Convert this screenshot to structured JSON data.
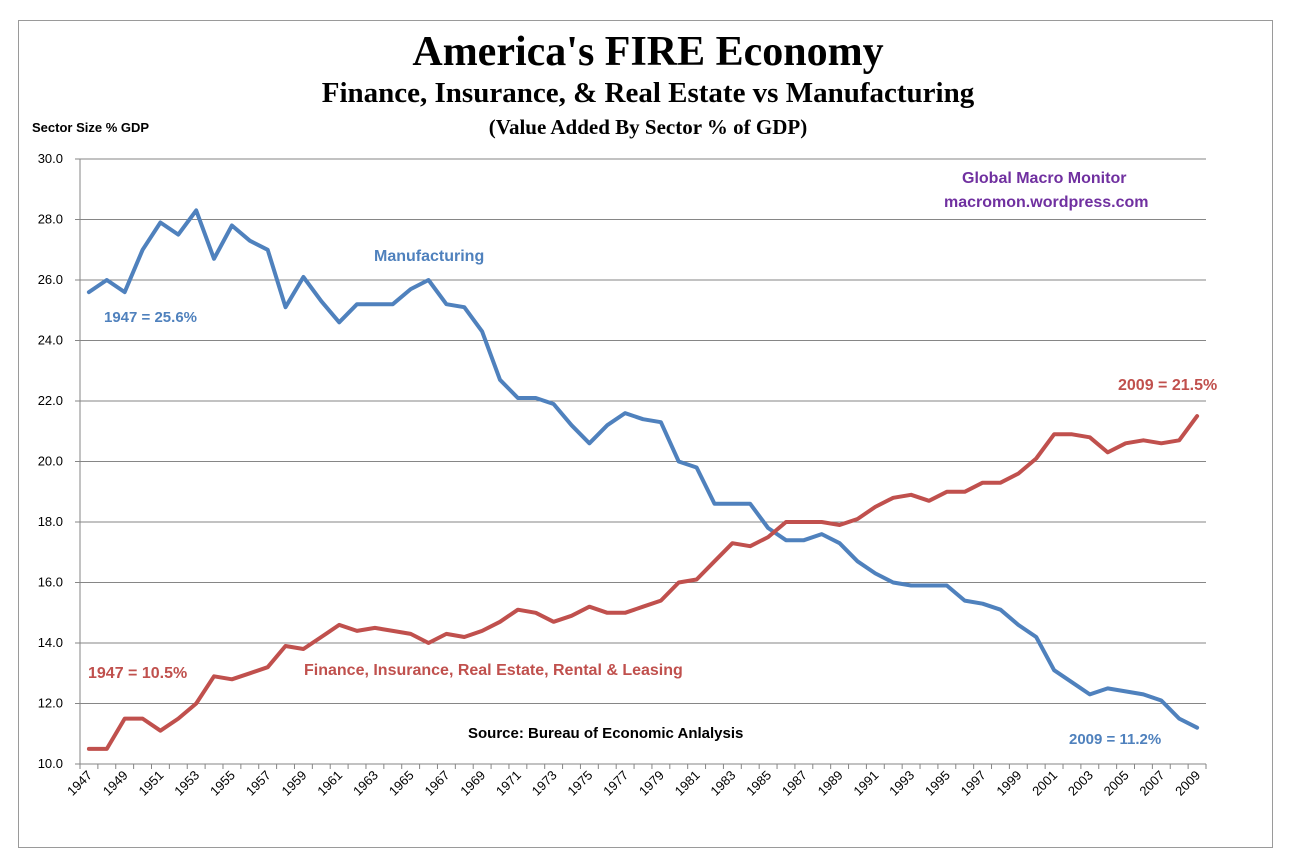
{
  "chart_data": {
    "type": "line",
    "title": "America's FIRE Economy",
    "subtitle": "Finance, Insurance, & Real Estate vs Manufacturing",
    "subtitle2": "(Value Added By Sector % of GDP)",
    "ylabel": "Sector Size % GDP",
    "xlabel": "",
    "ylim": [
      10,
      30
    ],
    "yticks": [
      "10.0",
      "12.0",
      "14.0",
      "16.0",
      "18.0",
      "20.0",
      "22.0",
      "24.0",
      "26.0",
      "28.0",
      "30.0"
    ],
    "xtick_labels": [
      "1947",
      "1949",
      "1951",
      "1953",
      "1955",
      "1957",
      "1959",
      "1961",
      "1963",
      "1965",
      "1967",
      "1969",
      "1971",
      "1973",
      "1975",
      "1977",
      "1979",
      "1981",
      "1983",
      "1985",
      "1987",
      "1989",
      "1991",
      "1993",
      "1995",
      "1997",
      "1999",
      "2001",
      "2003",
      "2005",
      "2007",
      "2009"
    ],
    "grid": true,
    "x": [
      1947,
      1948,
      1949,
      1950,
      1951,
      1952,
      1953,
      1954,
      1955,
      1956,
      1957,
      1958,
      1959,
      1960,
      1961,
      1962,
      1963,
      1964,
      1965,
      1966,
      1967,
      1968,
      1969,
      1970,
      1971,
      1972,
      1973,
      1974,
      1975,
      1976,
      1977,
      1978,
      1979,
      1980,
      1981,
      1982,
      1983,
      1984,
      1985,
      1986,
      1987,
      1988,
      1989,
      1990,
      1991,
      1992,
      1993,
      1994,
      1995,
      1996,
      1997,
      1998,
      1999,
      2000,
      2001,
      2002,
      2003,
      2004,
      2005,
      2006,
      2007,
      2008,
      2009
    ],
    "series": [
      {
        "name": "Manufacturing",
        "color": "#4f81bd",
        "values": [
          25.6,
          26.0,
          25.6,
          27.0,
          27.9,
          27.5,
          28.3,
          26.7,
          27.8,
          27.3,
          27.0,
          25.1,
          26.1,
          25.3,
          24.6,
          25.2,
          25.2,
          25.2,
          25.7,
          26.0,
          25.2,
          25.1,
          24.3,
          22.7,
          22.1,
          22.1,
          21.9,
          21.2,
          20.6,
          21.2,
          21.6,
          21.4,
          21.3,
          20.0,
          19.8,
          18.6,
          18.6,
          18.6,
          17.8,
          17.4,
          17.4,
          17.6,
          17.3,
          16.7,
          16.3,
          16.0,
          15.9,
          15.9,
          15.9,
          15.4,
          15.3,
          15.1,
          14.6,
          14.2,
          13.1,
          12.7,
          12.3,
          12.5,
          12.4,
          12.3,
          12.1,
          11.5,
          11.2
        ]
      },
      {
        "name": "Finance, Insurance, Real Estate, Rental & Leasing",
        "color": "#c0504d",
        "values": [
          10.5,
          10.5,
          11.5,
          11.5,
          11.1,
          11.5,
          12.0,
          12.9,
          12.8,
          13.0,
          13.2,
          13.9,
          13.8,
          14.2,
          14.6,
          14.4,
          14.5,
          14.4,
          14.3,
          14.0,
          14.3,
          14.2,
          14.4,
          14.7,
          15.1,
          15.0,
          14.7,
          14.9,
          15.2,
          15.0,
          15.0,
          15.2,
          15.4,
          16.0,
          16.1,
          16.7,
          17.3,
          17.2,
          17.5,
          18.0,
          18.0,
          18.0,
          17.9,
          18.1,
          18.5,
          18.8,
          18.9,
          18.7,
          19.0,
          19.0,
          19.3,
          19.3,
          19.6,
          20.1,
          20.9,
          20.9,
          20.8,
          20.3,
          20.6,
          20.7,
          20.6,
          20.7,
          21.5
        ]
      }
    ],
    "annotations": {
      "mfg_label": "Manufacturing",
      "mfg_start": "1947 = 25.6%",
      "mfg_end": "2009 = 11.2%",
      "fire_label": "Finance, Insurance, Real Estate, Rental  & Leasing",
      "fire_start": "1947 = 10.5%",
      "fire_end": "2009 = 21.5%",
      "credit_line1": "Global Macro Monitor",
      "credit_line2": "macromon.wordpress.com",
      "source": "Source:  Bureau of Economic Anlalysis"
    },
    "colors": {
      "annotation_purple": "#7030a0",
      "grid": "#868686"
    }
  }
}
